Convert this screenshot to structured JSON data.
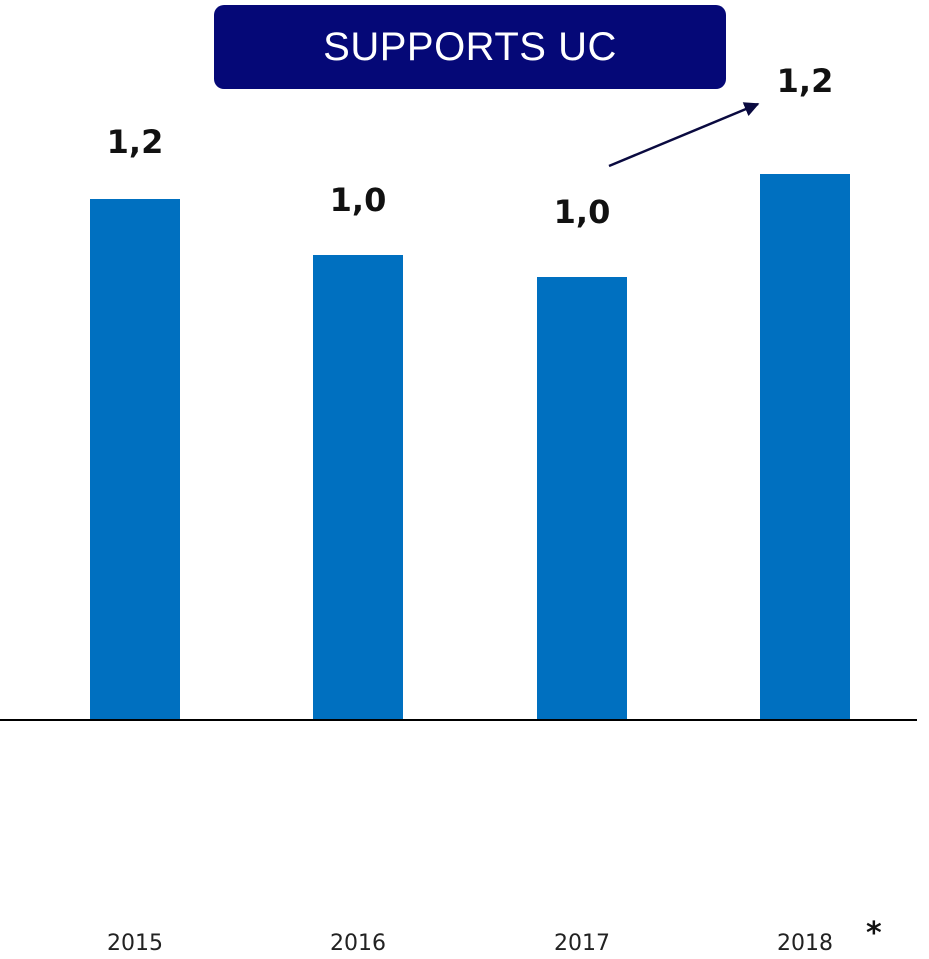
{
  "chart_data": {
    "type": "bar",
    "title": "SUPPORTS UC",
    "categories": [
      "2015",
      "2016",
      "2017",
      "2018"
    ],
    "values": [
      1.2,
      1.0,
      1.0,
      1.2
    ],
    "value_labels": [
      "1,2",
      "1,0",
      "1,0",
      "1,2"
    ],
    "footnote_marker": "*",
    "bar_color": "#0070C0",
    "title_bg_color": "#050877",
    "axis_color": "#000000",
    "arrow_color": "#0a0a40",
    "trend_arrow": {
      "from_category": "2017",
      "to_category": "2018"
    },
    "grid": false,
    "legend": "none"
  }
}
